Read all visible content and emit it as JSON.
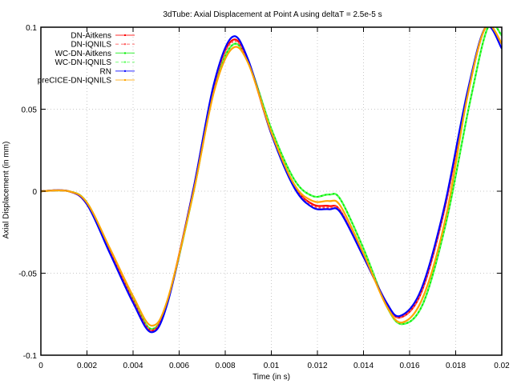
{
  "chart_data": {
    "type": "line",
    "title": "3dTube: Axial Displacement at Point A using deltaT = 2.5e-5 s",
    "xlabel": "Time (in s)",
    "ylabel": "Axial Displacement (in mm)",
    "xlim": [
      0,
      0.02
    ],
    "ylim": [
      -0.1,
      0.1
    ],
    "xticks": [
      "0",
      "0.002",
      "0.004",
      "0.006",
      "0.008",
      "0.01",
      "0.012",
      "0.014",
      "0.016",
      "0.018",
      "0.02"
    ],
    "yticks": [
      "-0.1",
      "-0.05",
      "0",
      "0.05",
      "0.1"
    ],
    "grid": true,
    "legend_position": "top-left",
    "series": [
      {
        "name": "DN-Aitkens",
        "color": "#ff0000",
        "dash": "solid",
        "x": [
          0,
          0.0012,
          0.002,
          0.003,
          0.004,
          0.0048,
          0.0055,
          0.0066,
          0.0075,
          0.0083,
          0.009,
          0.01,
          0.011,
          0.0118,
          0.0125,
          0.013,
          0.014,
          0.015,
          0.0156,
          0.0165,
          0.0175,
          0.0185,
          0.0193,
          0.02
        ],
        "y": [
          0,
          0,
          -0.008,
          -0.037,
          -0.067,
          -0.085,
          -0.067,
          0,
          0.064,
          0.092,
          0.079,
          0.035,
          0.003,
          -0.008,
          -0.009,
          -0.012,
          -0.04,
          -0.068,
          -0.077,
          -0.062,
          -0.012,
          0.058,
          0.1,
          0.09
        ]
      },
      {
        "name": "DN-IQNILS",
        "color": "#ff5555",
        "dash": "dashed",
        "x": [
          0,
          0.0012,
          0.002,
          0.003,
          0.004,
          0.0048,
          0.0055,
          0.0066,
          0.0075,
          0.0083,
          0.009,
          0.01,
          0.011,
          0.0118,
          0.0125,
          0.013,
          0.014,
          0.015,
          0.0156,
          0.0165,
          0.0175,
          0.0185,
          0.0193,
          0.02
        ],
        "y": [
          0,
          0,
          -0.008,
          -0.037,
          -0.067,
          -0.085,
          -0.067,
          0,
          0.064,
          0.091,
          0.079,
          0.035,
          0.003,
          -0.009,
          -0.01,
          -0.012,
          -0.04,
          -0.068,
          -0.077,
          -0.062,
          -0.012,
          0.058,
          0.1,
          0.09
        ]
      },
      {
        "name": "WC-DN-Aitkens",
        "color": "#00ee00",
        "dash": "solid",
        "x": [
          0,
          0.0012,
          0.002,
          0.003,
          0.004,
          0.0048,
          0.0055,
          0.0066,
          0.0075,
          0.0083,
          0.009,
          0.01,
          0.011,
          0.0118,
          0.0125,
          0.013,
          0.014,
          0.015,
          0.0157,
          0.0166,
          0.0176,
          0.0186,
          0.0194,
          0.02
        ],
        "y": [
          0,
          0,
          -0.007,
          -0.036,
          -0.066,
          -0.084,
          -0.067,
          -0.002,
          0.061,
          0.089,
          0.079,
          0.038,
          0.007,
          -0.003,
          -0.002,
          -0.005,
          -0.035,
          -0.07,
          -0.081,
          -0.068,
          -0.018,
          0.053,
          0.1,
          0.095
        ]
      },
      {
        "name": "WC-DN-IQNILS",
        "color": "#55ff55",
        "dash": "dashed",
        "x": [
          0,
          0.0012,
          0.002,
          0.003,
          0.004,
          0.0048,
          0.0055,
          0.0066,
          0.0075,
          0.0083,
          0.009,
          0.01,
          0.011,
          0.0118,
          0.0125,
          0.013,
          0.014,
          0.015,
          0.0157,
          0.0166,
          0.0176,
          0.0186,
          0.0194,
          0.02
        ],
        "y": [
          0,
          0,
          -0.007,
          -0.036,
          -0.066,
          -0.084,
          -0.067,
          -0.002,
          0.061,
          0.089,
          0.079,
          0.038,
          0.007,
          -0.003,
          -0.002,
          -0.005,
          -0.035,
          -0.07,
          -0.081,
          -0.068,
          -0.018,
          0.053,
          0.1,
          0.095
        ]
      },
      {
        "name": "RN",
        "color": "#0000ff",
        "dash": "solid",
        "x": [
          0,
          0.0012,
          0.002,
          0.003,
          0.004,
          0.0048,
          0.0055,
          0.0066,
          0.0075,
          0.0083,
          0.009,
          0.01,
          0.011,
          0.0118,
          0.0125,
          0.013,
          0.014,
          0.015,
          0.0156,
          0.0165,
          0.0175,
          0.0185,
          0.0193,
          0.02
        ],
        "y": [
          0,
          0,
          -0.008,
          -0.038,
          -0.068,
          -0.086,
          -0.068,
          0,
          0.065,
          0.094,
          0.08,
          0.035,
          0.002,
          -0.01,
          -0.011,
          -0.013,
          -0.04,
          -0.068,
          -0.076,
          -0.06,
          -0.01,
          0.06,
          0.1,
          0.087
        ]
      },
      {
        "name": "preCICE-DN-IQNILS",
        "color": "#ffa500",
        "dash": "solid",
        "x": [
          0,
          0.0012,
          0.002,
          0.003,
          0.004,
          0.0048,
          0.0055,
          0.0066,
          0.0075,
          0.0083,
          0.009,
          0.01,
          0.011,
          0.0118,
          0.0125,
          0.013,
          0.014,
          0.015,
          0.0157,
          0.0166,
          0.0176,
          0.0185,
          0.0193,
          0.02
        ],
        "y": [
          0,
          0,
          -0.007,
          -0.035,
          -0.064,
          -0.082,
          -0.066,
          -0.002,
          0.06,
          0.087,
          0.078,
          0.036,
          0.004,
          -0.006,
          -0.006,
          -0.009,
          -0.038,
          -0.07,
          -0.08,
          -0.064,
          -0.014,
          0.057,
          0.1,
          0.09
        ]
      }
    ]
  },
  "title": "3dTube: Axial Displacement at Point A using deltaT = 2.5e-5 s",
  "xlabel": "Time (in s)",
  "ylabel": "Axial Displacement (in mm)"
}
